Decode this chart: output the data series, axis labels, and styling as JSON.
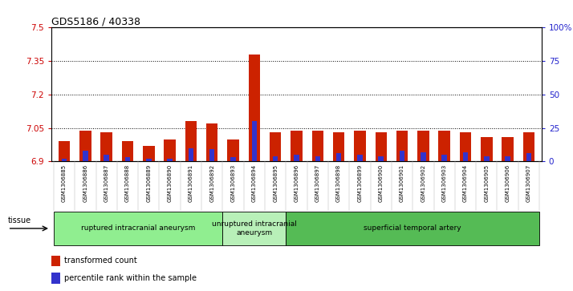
{
  "title": "GDS5186 / 40338",
  "samples": [
    "GSM1306885",
    "GSM1306886",
    "GSM1306887",
    "GSM1306888",
    "GSM1306889",
    "GSM1306890",
    "GSM1306891",
    "GSM1306892",
    "GSM1306893",
    "GSM1306894",
    "GSM1306895",
    "GSM1306896",
    "GSM1306897",
    "GSM1306898",
    "GSM1306899",
    "GSM1306900",
    "GSM1306901",
    "GSM1306902",
    "GSM1306903",
    "GSM1306904",
    "GSM1306905",
    "GSM1306906",
    "GSM1306907"
  ],
  "red_values": [
    6.99,
    7.04,
    7.03,
    6.99,
    6.97,
    7.0,
    7.08,
    7.07,
    7.0,
    7.38,
    7.03,
    7.04,
    7.04,
    7.03,
    7.04,
    7.03,
    7.04,
    7.04,
    7.04,
    7.03,
    7.01,
    7.01,
    7.03
  ],
  "blue_values": [
    2,
    8,
    5,
    3,
    2,
    2,
    10,
    9,
    3,
    30,
    4,
    5,
    4,
    6,
    5,
    4,
    8,
    7,
    5,
    7,
    4,
    4,
    6
  ],
  "ylim_left": [
    6.9,
    7.5
  ],
  "ylim_right": [
    0,
    100
  ],
  "yticks_left": [
    6.9,
    7.05,
    7.2,
    7.35,
    7.5
  ],
  "yticks_right": [
    0,
    25,
    50,
    75,
    100
  ],
  "ytick_labels_left": [
    "6.9",
    "7.05",
    "7.2",
    "7.35",
    "7.5"
  ],
  "ytick_labels_right": [
    "0",
    "25",
    "50",
    "75",
    "100%"
  ],
  "groups": [
    {
      "label": "ruptured intracranial aneurysm",
      "start": 0,
      "end": 8,
      "color": "#90EE90"
    },
    {
      "label": "unruptured intracranial\naneurysm",
      "start": 8,
      "end": 11,
      "color": "#b8f0b8"
    },
    {
      "label": "superficial temporal artery",
      "start": 11,
      "end": 23,
      "color": "#55bb55"
    }
  ],
  "tissue_label": "tissue",
  "legend_red": "transformed count",
  "legend_blue": "percentile rank within the sample",
  "red_color": "#cc2200",
  "blue_color": "#3333cc",
  "xtick_bg": "#d0d0d0"
}
